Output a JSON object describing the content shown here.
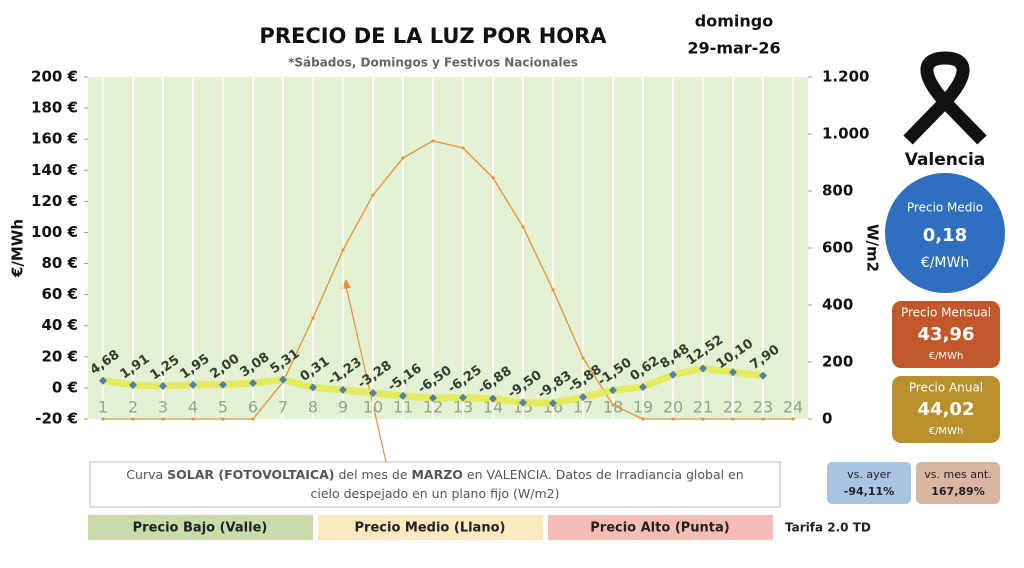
{
  "chart_data": {
    "type": "line",
    "title": "PRECIO DE LA LUZ POR HORA",
    "subtitle": "*Sábados, Domingos y Festivos Nacionales",
    "day": "domingo",
    "date": "29-mar-26",
    "ylabel": "€/MWh",
    "y2label": "W/m2",
    "categories": [
      1,
      2,
      3,
      4,
      5,
      6,
      7,
      8,
      9,
      10,
      11,
      12,
      13,
      14,
      15,
      16,
      17,
      18,
      19,
      20,
      21,
      22,
      23,
      24
    ],
    "series": [
      {
        "name": "Precio",
        "color": "#e3ea52",
        "marker_color": "#4f7fae",
        "values": [
          4.68,
          1.91,
          1.25,
          1.95,
          2.0,
          3.08,
          5.31,
          0.31,
          -1.23,
          -3.28,
          -5.16,
          -6.5,
          -6.25,
          -6.88,
          -9.5,
          -9.83,
          -5.88,
          -1.5,
          0.62,
          8.48,
          12.52,
          10.1,
          7.9,
          null
        ],
        "value_labels": [
          "4,68",
          "1,91",
          "1,25",
          "1,95",
          "2,00",
          "3,08",
          "5,31",
          "0,31",
          "-1,23",
          "-3,28",
          "-5,16",
          "-6,50",
          "-6,25",
          "-6,88",
          "-9,50",
          "-9,83",
          "-5,88",
          "-1,50",
          "0,62",
          "8,48",
          "12,52",
          "10,10",
          "7,90",
          null
        ]
      },
      {
        "name": "Solar",
        "color": "#e8923a",
        "axis": "y2",
        "values": [
          0,
          0,
          0,
          0,
          0,
          0,
          130,
          354,
          593,
          786,
          916,
          976,
          951,
          846,
          674,
          453,
          214,
          49,
          0,
          0,
          0,
          0,
          0,
          0
        ]
      }
    ],
    "ylim": [
      -20,
      200
    ],
    "yticks": [
      {
        "value": -20,
        "label": "-20 €"
      },
      {
        "value": 0,
        "label": "0 €"
      },
      {
        "value": 20,
        "label": "20 €"
      },
      {
        "value": 40,
        "label": "40 €"
      },
      {
        "value": 60,
        "label": "60 €"
      },
      {
        "value": 80,
        "label": "80 €"
      },
      {
        "value": 100,
        "label": "100 €"
      },
      {
        "value": 120,
        "label": "120 €"
      },
      {
        "value": 140,
        "label": "140 €"
      },
      {
        "value": 160,
        "label": "160 €"
      },
      {
        "value": 180,
        "label": "180 €"
      },
      {
        "value": 200,
        "label": "200 €"
      }
    ],
    "y2lim": [
      0,
      1200
    ],
    "y2ticks": [
      0,
      200,
      400,
      600,
      800,
      {
        "value": 1000,
        "label": "1.000"
      },
      {
        "value": 1200,
        "label": "1.200"
      }
    ],
    "grid": true,
    "note": [
      {
        "text": "Curva "
      },
      {
        "text": "SOLAR (FOTOVOLTAICA)",
        "bold": true
      },
      {
        "text": " del mes de "
      },
      {
        "text": "MARZO",
        "bold": true
      },
      {
        "text": " en VALENCIA. Datos de Irradiancia global en"
      },
      {
        "text": "cielo despejado en un plano fijo (W/m2)",
        "newline": true
      }
    ]
  },
  "city": "Valencia",
  "panels": {
    "medio": {
      "title": "Precio Medio",
      "value": "0,18",
      "unit": "€/MWh"
    },
    "mensual": {
      "title": "Precio Mensual",
      "value": "43,96",
      "unit": "€/MWh"
    },
    "anual": {
      "title": "Precio Anual",
      "value": "44,02",
      "unit": "€/MWh"
    },
    "ayer": {
      "title": "vs. ayer",
      "value": "-94,11%"
    },
    "mes_ant": {
      "title": "vs. mes ant.",
      "value": "167,89%"
    }
  },
  "legend": [
    "Precio Bajo (Valle)",
    "Precio Medio (Llano)",
    "Precio Alto (Punta)"
  ],
  "tarifa": "Tarifa 2.0 TD"
}
